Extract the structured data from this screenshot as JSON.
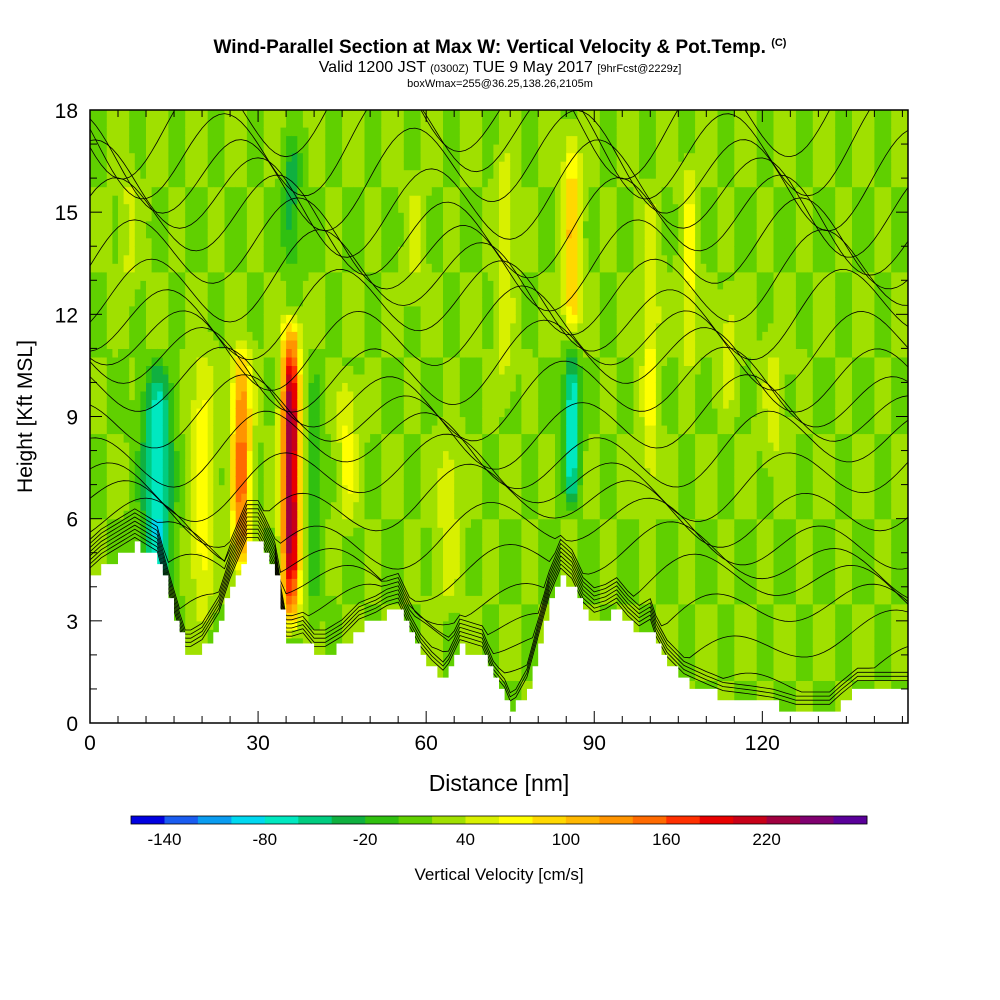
{
  "header": {
    "title": "Wind-Parallel Section at Max W: Vertical Velocity & Pot.Temp.",
    "copyright": "(C)",
    "valid_prefix": "Valid 1200 JST",
    "valid_utc": "(0300Z)",
    "valid_suffix": "TUE 9 May 2017",
    "forecast": "[9hrFcst@2229z]",
    "boxwmax": "boxWmax=255@36.25,138.26,2105m"
  },
  "colorbar": {
    "label": "Vertical Velocity [cm/s]",
    "tick_labels": [
      "-140",
      "-80",
      "-20",
      "40",
      "100",
      "160",
      "220"
    ],
    "colors": [
      "#0000e0",
      "#1a5cf0",
      "#0a9cf0",
      "#00d8f0",
      "#00e8c0",
      "#00cc80",
      "#10b040",
      "#30c010",
      "#60d000",
      "#a0e000",
      "#d8f000",
      "#ffff00",
      "#ffd800",
      "#ffb800",
      "#ff9400",
      "#ff6a00",
      "#ff3000",
      "#e80000",
      "#c80018",
      "#a00040",
      "#800070",
      "#5a009a"
    ]
  },
  "chart_data": {
    "type": "heatmap",
    "xlabel": "Distance [nm]",
    "ylabel": "Height [Kft MSL]",
    "xlim": [
      0,
      146
    ],
    "ylim": [
      0,
      18
    ],
    "x_ticks": [
      0,
      30,
      60,
      90,
      120
    ],
    "y_ticks": [
      0,
      3,
      6,
      9,
      12,
      15,
      18
    ],
    "terrain_kft": {
      "x": [
        0,
        2,
        8,
        12,
        14,
        16,
        17,
        18,
        20,
        23,
        25,
        27,
        28,
        30,
        31,
        33,
        34,
        35,
        36,
        38,
        40,
        42,
        45,
        48,
        51,
        53,
        55,
        57,
        59,
        61,
        63,
        64,
        66,
        70,
        72,
        74,
        75,
        76,
        78,
        80,
        82,
        84,
        86,
        88,
        90,
        92,
        94,
        96,
        98,
        100,
        101,
        103,
        106,
        110,
        113,
        118,
        122,
        126,
        129,
        132,
        134,
        137,
        140,
        146
      ],
      "y": [
        4.3,
        4.6,
        5.2,
        4.8,
        3.6,
        2.5,
        2.0,
        2.0,
        2.2,
        3.0,
        4.0,
        4.8,
        5.2,
        5.2,
        4.9,
        4.2,
        3.2,
        2.3,
        2.3,
        2.4,
        2.0,
        2.0,
        2.3,
        2.8,
        3.0,
        3.2,
        3.3,
        2.6,
        2.0,
        1.6,
        1.3,
        1.5,
        2.2,
        2.0,
        1.2,
        0.8,
        0.4,
        0.5,
        1.1,
        2.3,
        3.5,
        4.3,
        4.0,
        3.3,
        3.0,
        3.1,
        3.3,
        2.9,
        2.6,
        2.8,
        2.3,
        1.7,
        1.2,
        0.9,
        0.7,
        0.6,
        0.5,
        0.3,
        0.3,
        0.3,
        0.6,
        1.0,
        1.0,
        1.0
      ]
    },
    "features": [
      {
        "x": 12,
        "ybot": 3.0,
        "ytop": 11.0,
        "width": 3.2,
        "w": -85
      },
      {
        "x": 20,
        "ybot": 2.5,
        "ytop": 11.5,
        "width": 2.6,
        "w": 75
      },
      {
        "x": 27,
        "ybot": 3.8,
        "ytop": 11.5,
        "width": 2.2,
        "w": 150
      },
      {
        "x": 35.8,
        "ybot": 2.4,
        "ytop": 12.3,
        "width": 2.0,
        "w": 245
      },
      {
        "x": 40,
        "ybot": 2.5,
        "ytop": 11.0,
        "width": 1.6,
        "w": -15
      },
      {
        "x": 46,
        "ybot": 5.5,
        "ytop": 10.5,
        "width": 2.2,
        "w": 65
      },
      {
        "x": 64,
        "ybot": 3.0,
        "ytop": 9.0,
        "width": 2.6,
        "w": 55
      },
      {
        "x": 74,
        "ybot": 9.0,
        "ytop": 17.5,
        "width": 2.0,
        "w": 55
      },
      {
        "x": 86,
        "ybot": 10.0,
        "ytop": 17.8,
        "width": 2.0,
        "w": 100
      },
      {
        "x": 86,
        "ybot": 6.0,
        "ytop": 12.0,
        "width": 1.8,
        "w": -80
      },
      {
        "x": 100,
        "ybot": 6.0,
        "ytop": 16.0,
        "width": 2.0,
        "w": 65
      },
      {
        "x": 107,
        "ybot": 10.0,
        "ytop": 17.0,
        "width": 1.6,
        "w": 70
      },
      {
        "x": 114,
        "ybot": 9.0,
        "ytop": 13.0,
        "width": 2.2,
        "w": 50
      },
      {
        "x": 122,
        "ybot": 7.0,
        "ytop": 12.0,
        "width": 2.4,
        "w": 45
      },
      {
        "x": 7,
        "ybot": 12.0,
        "ytop": 17.0,
        "width": 2.0,
        "w": 45
      },
      {
        "x": 36,
        "ybot": 13.0,
        "ytop": 17.5,
        "width": 2.0,
        "w": -30
      },
      {
        "x": 58,
        "ybot": 12.0,
        "ytop": 16.5,
        "width": 2.0,
        "w": 45
      }
    ],
    "theta_levels": 24
  }
}
